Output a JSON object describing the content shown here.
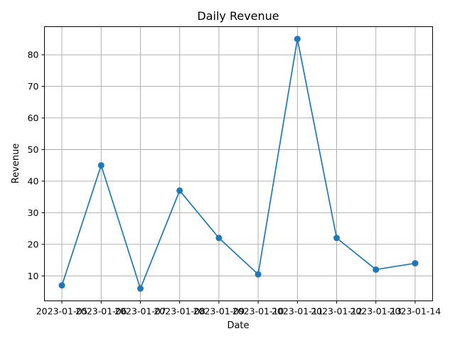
{
  "chart_data": {
    "type": "line",
    "title": "Daily Revenue",
    "xlabel": "Date",
    "ylabel": "Revenue",
    "x": [
      "2023-01-05",
      "2023-01-06",
      "2023-01-07",
      "2023-01-08",
      "2023-01-09",
      "2023-01-10",
      "2023-01-11",
      "2023-01-12",
      "2023-01-13",
      "2023-01-14"
    ],
    "series": [
      {
        "values": [
          7,
          45,
          6,
          37,
          22,
          10.5,
          85,
          22,
          12,
          14
        ]
      }
    ],
    "y_ticks": [
      10,
      20,
      30,
      40,
      50,
      60,
      70,
      80
    ],
    "ylim": [
      2.1,
      88.9
    ],
    "grid": true,
    "marker": "circle",
    "colors": {
      "line": "#1f77b4",
      "grid": "#b0b0b0",
      "axes": "#000000"
    }
  }
}
